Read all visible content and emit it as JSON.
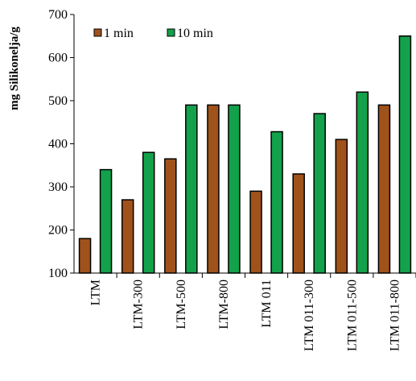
{
  "chart_data": {
    "type": "bar",
    "title": "",
    "xlabel": "",
    "ylabel": "mg Silikonelja/g",
    "ylim": [
      100,
      700
    ],
    "yticks": [
      100,
      200,
      300,
      400,
      500,
      600,
      700
    ],
    "categories": [
      "LTM",
      "LTM-300",
      "LTM-500",
      "LTM-800",
      "LTM 011",
      "LTM 011-300",
      "LTM 011-500",
      "LTM 011-800"
    ],
    "series": [
      {
        "name": "1 min",
        "color": "#a0521b",
        "values": [
          180,
          270,
          365,
          490,
          290,
          330,
          410,
          490
        ]
      },
      {
        "name": "10 min",
        "color": "#13a14b",
        "values": [
          340,
          380,
          490,
          490,
          428,
          470,
          520,
          650
        ]
      }
    ],
    "grid": false,
    "legend_position": "top-left"
  }
}
